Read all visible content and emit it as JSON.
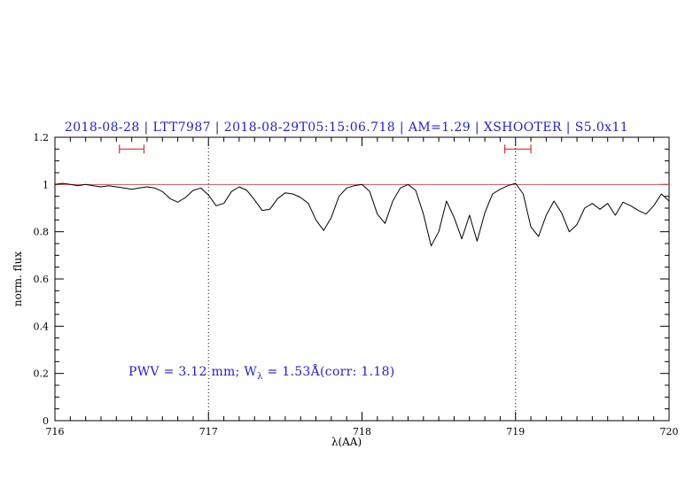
{
  "title": "2018-08-28 | LTT7987 | 2018-08-29T05:15:06.718 | AM=1.29 | XSHOOTER | S5.0x11",
  "annotation": {
    "part1": "PWV = 3.12 mm; W",
    "sub": "λ",
    "part2": " = 1.53Å(corr: 1.18)"
  },
  "axes": {
    "xlabel": "λ(AA)",
    "ylabel": "norm. flux"
  },
  "colors": {
    "accent_blue": "#2222cc",
    "continuum_red": "#cc5555",
    "marker_red": "#cc3333",
    "spectrum_black": "#000000",
    "frame_black": "#000000"
  },
  "chart_data": {
    "type": "line",
    "title": "2018-08-28 | LTT7987 | 2018-08-29T05:15:06.718 | AM=1.29 | XSHOOTER | S5.0x11",
    "xlabel": "λ(AA)",
    "ylabel": "norm. flux",
    "xlim": [
      716,
      720
    ],
    "ylim": [
      0,
      1.2
    ],
    "xticks": [
      716,
      717,
      718,
      719,
      720
    ],
    "xtick_labels": [
      "716",
      "717",
      "718",
      "719",
      "720"
    ],
    "yticks": [
      0,
      0.2,
      0.4,
      0.6,
      0.8,
      1,
      1.2
    ],
    "ytick_labels": [
      "0",
      "0.2",
      "0.4",
      "0.6",
      "0.8",
      "1",
      "1.2"
    ],
    "x_minor_step": 0.1,
    "y_minor_step": 0.05,
    "grid": "off",
    "vlines_dotted": [
      717,
      719
    ],
    "continuum_y": 1.0,
    "telluric_markers": [
      {
        "x1": 716.42,
        "x2": 716.58,
        "y": 1.15
      },
      {
        "x1": 718.93,
        "x2": 719.1,
        "y": 1.15
      }
    ],
    "series": [
      {
        "name": "spectrum",
        "x_start": 716.0,
        "x_step": 0.05,
        "y": [
          1.0,
          1.005,
          1.0,
          0.995,
          1.0,
          0.995,
          0.99,
          0.995,
          0.99,
          0.985,
          0.98,
          0.985,
          0.99,
          0.985,
          0.97,
          0.94,
          0.925,
          0.945,
          0.975,
          0.985,
          0.955,
          0.91,
          0.92,
          0.97,
          0.99,
          0.975,
          0.935,
          0.89,
          0.895,
          0.94,
          0.965,
          0.96,
          0.945,
          0.92,
          0.85,
          0.805,
          0.86,
          0.95,
          0.985,
          0.995,
          1.0,
          0.97,
          0.875,
          0.835,
          0.93,
          0.985,
          1.0,
          0.975,
          0.875,
          0.74,
          0.8,
          0.93,
          0.86,
          0.77,
          0.87,
          0.76,
          0.88,
          0.96,
          0.98,
          0.995,
          1.005,
          0.96,
          0.82,
          0.78,
          0.87,
          0.93,
          0.88,
          0.8,
          0.83,
          0.9,
          0.92,
          0.895,
          0.92,
          0.87,
          0.925,
          0.91,
          0.89,
          0.875,
          0.91,
          0.96,
          0.93
        ]
      }
    ]
  }
}
